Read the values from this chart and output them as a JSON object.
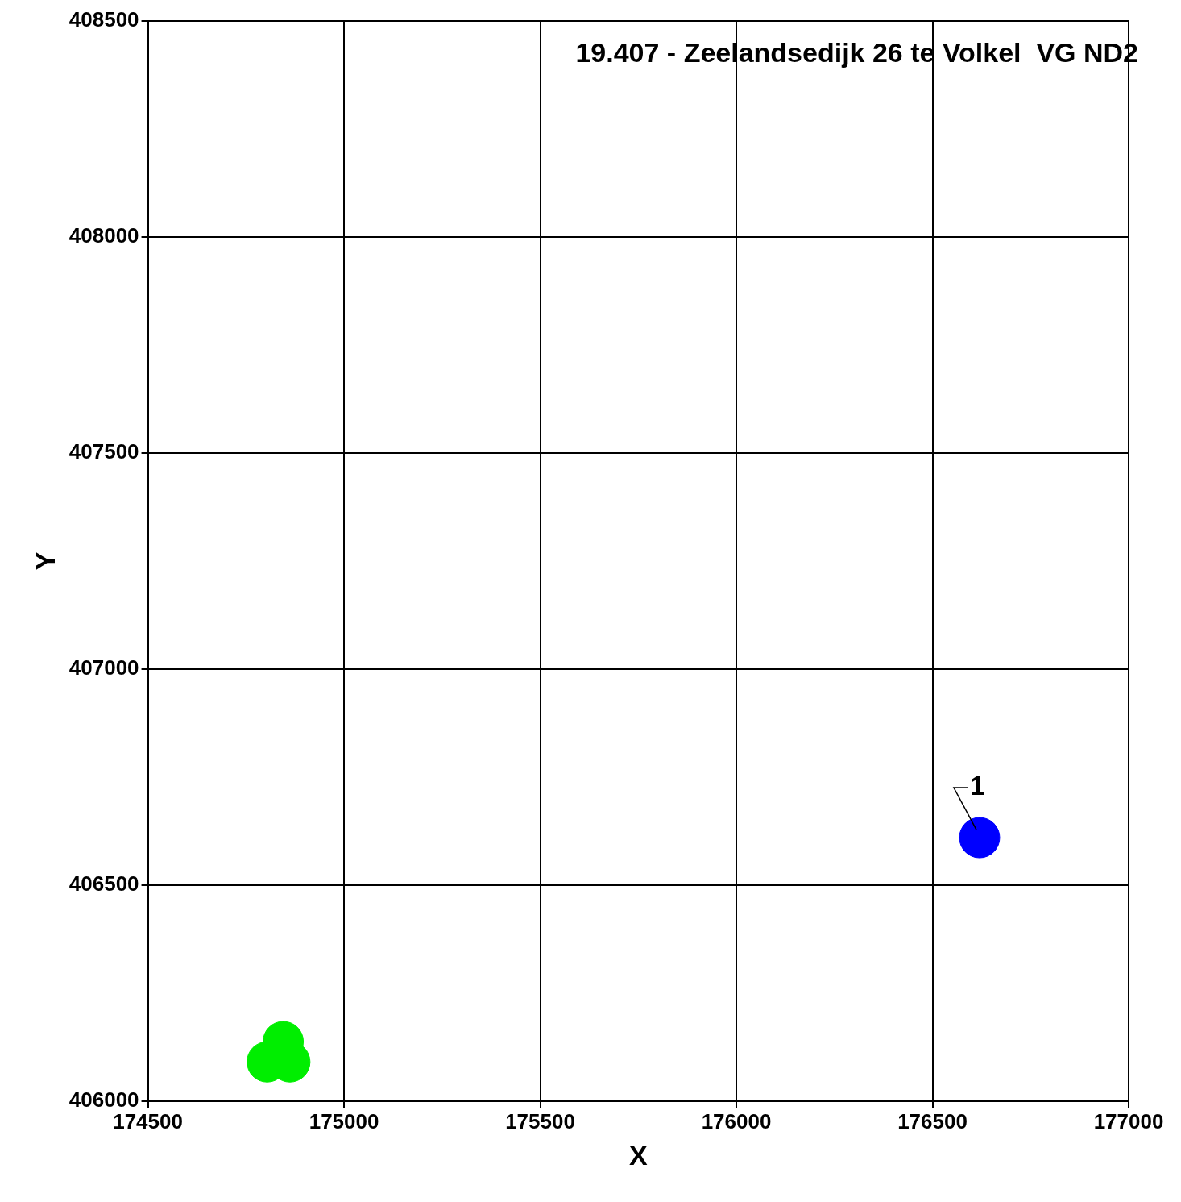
{
  "chart_data": {
    "type": "scatter",
    "title": "19.407 - Zeelandsedijk 26 te Volkel  VG ND2",
    "xlabel": "X",
    "ylabel": "Y",
    "xlim": [
      174500,
      177000
    ],
    "xticks": [
      174500,
      175000,
      175500,
      176000,
      176500,
      177000
    ],
    "ylim": [
      406000,
      408500
    ],
    "yticks": [
      406000,
      406500,
      407000,
      407500,
      408000,
      408500
    ],
    "grid": true,
    "legend": false,
    "marker": "circle",
    "series": [
      {
        "color": "#0000ff",
        "x": [
          176620
        ],
        "values": [
          406610
        ]
      },
      {
        "color": "#00ee00",
        "x": [
          174804,
          174862,
          174845
        ],
        "values": [
          406091,
          406091,
          406138
        ]
      }
    ],
    "annotations": [
      {
        "text": "1",
        "x": 176620,
        "y": 406610
      }
    ]
  }
}
